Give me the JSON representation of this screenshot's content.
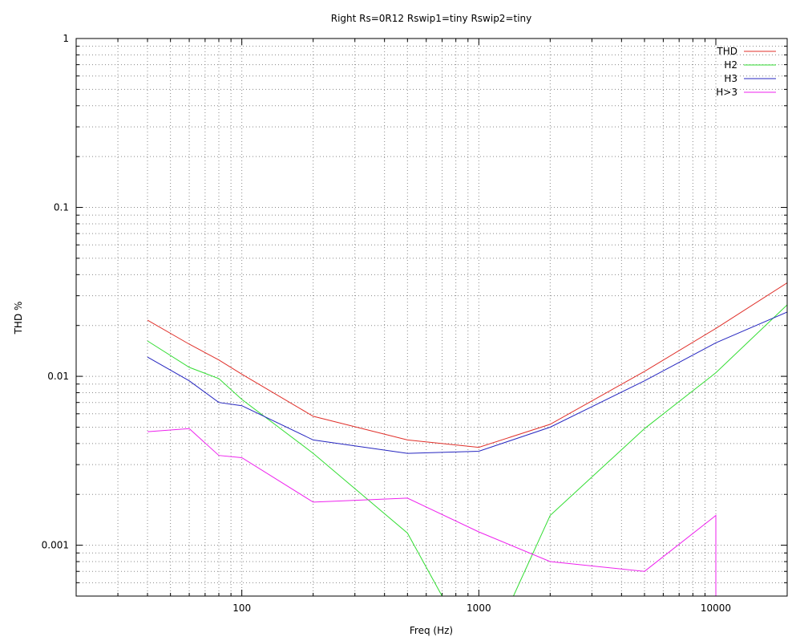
{
  "chart_data": {
    "type": "line",
    "title": "Right Rs=0R12 Rswip1=tiny  Rswip2=tiny",
    "xlabel": "Freq (Hz)",
    "ylabel": "THD %",
    "xscale": "log",
    "yscale": "log",
    "xlim": [
      20,
      20000
    ],
    "ylim": [
      0.0005,
      1
    ],
    "grid": true,
    "legend_position": "top-right",
    "x_ticks": [
      {
        "value": 100,
        "label": "100"
      },
      {
        "value": 1000,
        "label": "1000"
      },
      {
        "value": 10000,
        "label": "10000"
      }
    ],
    "y_ticks": [
      {
        "value": 1,
        "label": "1"
      },
      {
        "value": 0.1,
        "label": "0.1"
      },
      {
        "value": 0.01,
        "label": "0.01"
      },
      {
        "value": 0.001,
        "label": "0.001"
      }
    ],
    "series": [
      {
        "name": "THD",
        "color": "#e0302a",
        "x": [
          40,
          60,
          80,
          100,
          200,
          500,
          1000,
          2000,
          5000,
          10000,
          20000
        ],
        "y": [
          0.0215,
          0.0155,
          0.0125,
          0.0103,
          0.0058,
          0.0042,
          0.0038,
          0.0052,
          0.0107,
          0.0192,
          0.0358
        ]
      },
      {
        "name": "H2",
        "color": "#33dd33",
        "x": [
          40,
          60,
          80,
          100,
          200,
          500,
          700,
          1400,
          2000,
          5000,
          10000,
          20000
        ],
        "y": [
          0.0162,
          0.0113,
          0.0097,
          0.0073,
          0.0035,
          0.00118,
          0.0005,
          0.0005,
          0.0015,
          0.0049,
          0.0105,
          0.0265
        ]
      },
      {
        "name": "H3",
        "color": "#2626c0",
        "x": [
          40,
          60,
          80,
          100,
          200,
          500,
          1000,
          2000,
          5000,
          10000,
          20000
        ],
        "y": [
          0.013,
          0.0094,
          0.007,
          0.0067,
          0.0042,
          0.0035,
          0.0036,
          0.005,
          0.0094,
          0.0158,
          0.024
        ]
      },
      {
        "name": "H>3",
        "color": "#ee22ee",
        "x": [
          40,
          60,
          80,
          100,
          200,
          500,
          1000,
          2000,
          5000,
          10000,
          10000
        ],
        "y": [
          0.0047,
          0.0049,
          0.0034,
          0.0033,
          0.0018,
          0.0019,
          0.0012,
          0.0008,
          0.0007,
          0.0015,
          0.0005
        ]
      }
    ]
  }
}
